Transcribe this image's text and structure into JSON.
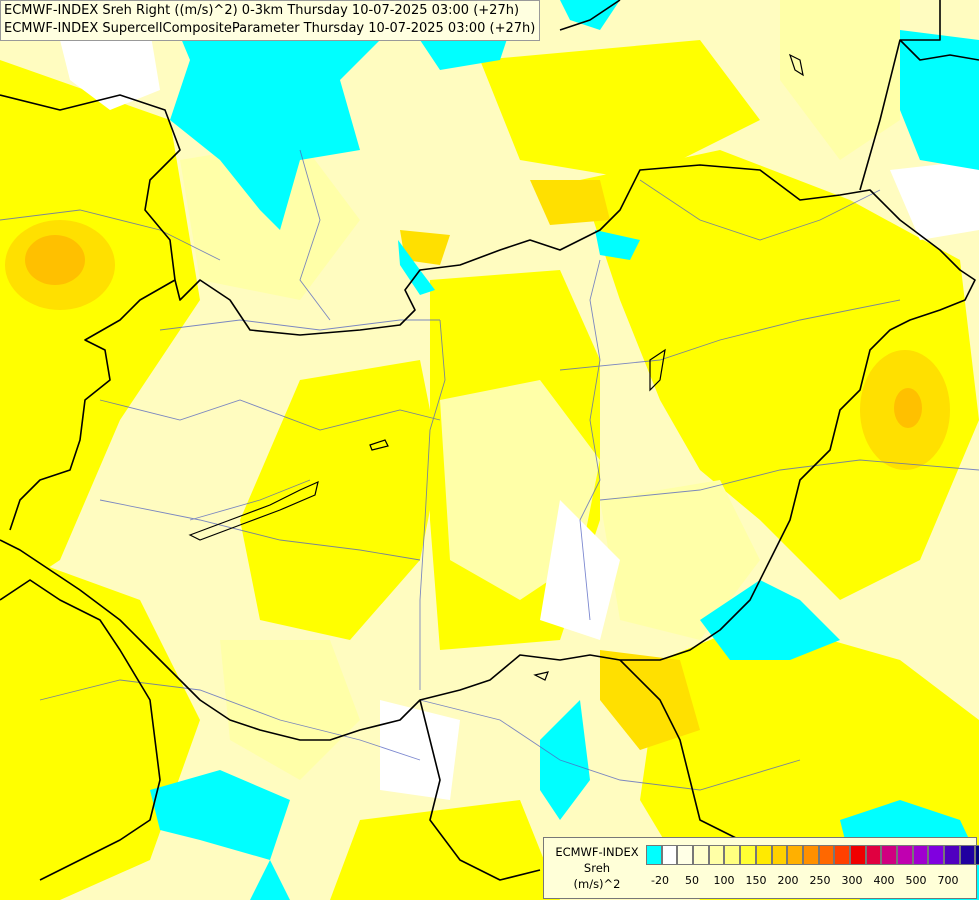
{
  "title": {
    "line1": "ECMWF-INDEX Sreh Right ((m/s)^2) 0-3km Thursday 10-07-2025 03:00 (+27h)",
    "line2": "ECMWF-INDEX SupercellCompositeParameter Thursday 10-07-2025 03:00 (+27h)"
  },
  "legend": {
    "line1": "ECMWF-INDEX",
    "line2": "Sreh",
    "line3": "(m/s)^2",
    "colors": [
      "#00ffff",
      "#ffffff",
      "#ffffe6",
      "#ffffcc",
      "#ffffa6",
      "#ffff7f",
      "#ffff33",
      "#ffea00",
      "#ffd000",
      "#ffb000",
      "#ff9000",
      "#ff6800",
      "#ff4000",
      "#f00000",
      "#e00040",
      "#d00080",
      "#c000b0",
      "#a000d0",
      "#8000e0",
      "#5000c0",
      "#2000a0",
      "#000080"
    ],
    "labels": [
      "-20",
      "50",
      "100",
      "150",
      "200",
      "250",
      "300",
      "400",
      "500",
      "700"
    ]
  },
  "colors": {
    "cyan": "#00ffff",
    "pale": "#ffffc0",
    "light": "#ffff80",
    "yellow": "#ffff00",
    "gold": "#ffe000",
    "orange": "#ffc000"
  }
}
